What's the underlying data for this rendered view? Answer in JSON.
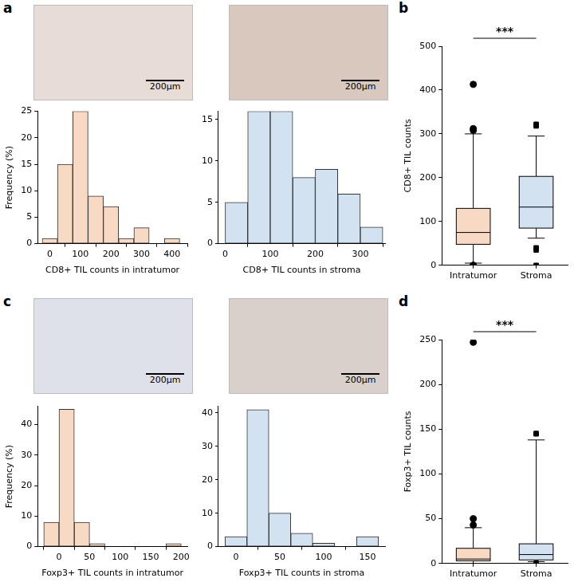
{
  "panel_labels": [
    "a",
    "b",
    "c",
    "d"
  ],
  "scale_bars": [
    "200μm",
    "200μm",
    "200μm",
    "200μm"
  ],
  "chart_data": [
    {
      "type": "histogram",
      "bins": [
        -25,
        25,
        75,
        125,
        175,
        225,
        275,
        325,
        375,
        425
      ],
      "counts": [
        1,
        15,
        25,
        9,
        7,
        1,
        3,
        0,
        1
      ],
      "color": "#f8d9c4",
      "xlabel": "CD8+ TIL counts in intratumor",
      "ylabel": "Frequency (%)",
      "xlim": [
        -40,
        450
      ],
      "ylim": [
        0,
        25
      ],
      "xticks": [
        0,
        100,
        200,
        300,
        400
      ],
      "yticks": [
        0,
        5,
        10,
        15,
        20,
        25
      ],
      "grid": false
    },
    {
      "type": "histogram",
      "bins": [
        0,
        50,
        100,
        150,
        200,
        250,
        300,
        350
      ],
      "counts": [
        5,
        16,
        16,
        8,
        9,
        6,
        2
      ],
      "color": "#d3e2f1",
      "xlabel": "CD8+ TIL counts in stroma",
      "xlim": [
        -15,
        355
      ],
      "ylim": [
        0,
        16
      ],
      "xticks": [
        0,
        100,
        200,
        300
      ],
      "yticks": [
        0,
        5,
        10,
        15
      ],
      "grid": false
    },
    {
      "type": "box",
      "categories": [
        "Intratumor",
        "Stroma"
      ],
      "ylabel": "CD8+ TIL counts",
      "ylim": [
        0,
        500
      ],
      "yticks": [
        0,
        100,
        200,
        300,
        400,
        500
      ],
      "annotations": [
        "***"
      ],
      "grid": false,
      "boxes": [
        {
          "color": "#f8d9c4",
          "marker": "circle",
          "whislo": 5,
          "q1": 48,
          "med": 75,
          "q3": 130,
          "whishi": 300,
          "fliers": [
            413,
            312,
            308,
            0,
            0,
            0
          ]
        },
        {
          "color": "#d3e2f1",
          "marker": "square",
          "whislo": 62,
          "q1": 85,
          "med": 133,
          "q3": 203,
          "whishi": 295,
          "fliers": [
            318,
            322,
            40,
            35,
            0
          ]
        }
      ]
    },
    {
      "type": "histogram",
      "bins": [
        -25,
        0,
        25,
        50,
        75,
        100,
        125,
        150,
        175,
        200
      ],
      "counts": [
        8,
        45,
        8,
        1,
        0,
        0,
        0,
        0,
        1
      ],
      "color": "#f8d9c4",
      "xlabel": "Foxp3+ TIL counts in intratumor",
      "ylabel": "Frequency (%)",
      "xlim": [
        -35,
        210
      ],
      "ylim": [
        0,
        46
      ],
      "xticks": [
        0,
        50,
        100,
        150,
        200
      ],
      "yticks": [
        0,
        10,
        20,
        30,
        40
      ],
      "grid": false
    },
    {
      "type": "histogram",
      "bins": [
        -12.5,
        12.5,
        37.5,
        62.5,
        87.5,
        112.5,
        137.5,
        162.5
      ],
      "counts": [
        3,
        41,
        10,
        4,
        1,
        0,
        3
      ],
      "color": "#d3e2f1",
      "xlabel": "Foxp3+ TIL counts in stroma",
      "xlim": [
        -20,
        170
      ],
      "ylim": [
        0,
        42
      ],
      "xticks": [
        0,
        50,
        100,
        150
      ],
      "yticks": [
        0,
        10,
        20,
        30,
        40
      ],
      "grid": false
    },
    {
      "type": "box",
      "categories": [
        "Intratumor",
        "Stroma"
      ],
      "ylabel": "Foxp3+ TIL counts",
      "ylim": [
        0,
        250
      ],
      "yticks": [
        0,
        50,
        100,
        150,
        200,
        250
      ],
      "annotations": [
        "***"
      ],
      "grid": false,
      "boxes": [
        {
          "color": "#f8d9c4",
          "marker": "circle",
          "whislo": 0,
          "q1": 3,
          "med": 5,
          "q3": 17,
          "whishi": 40,
          "fliers": [
            247,
            50,
            43
          ]
        },
        {
          "color": "#d3e2f1",
          "marker": "square",
          "whislo": 2,
          "q1": 4,
          "med": 10,
          "q3": 22,
          "whishi": 138,
          "fliers": [
            145,
            145,
            145,
            0,
            0,
            0,
            0
          ]
        }
      ]
    }
  ]
}
